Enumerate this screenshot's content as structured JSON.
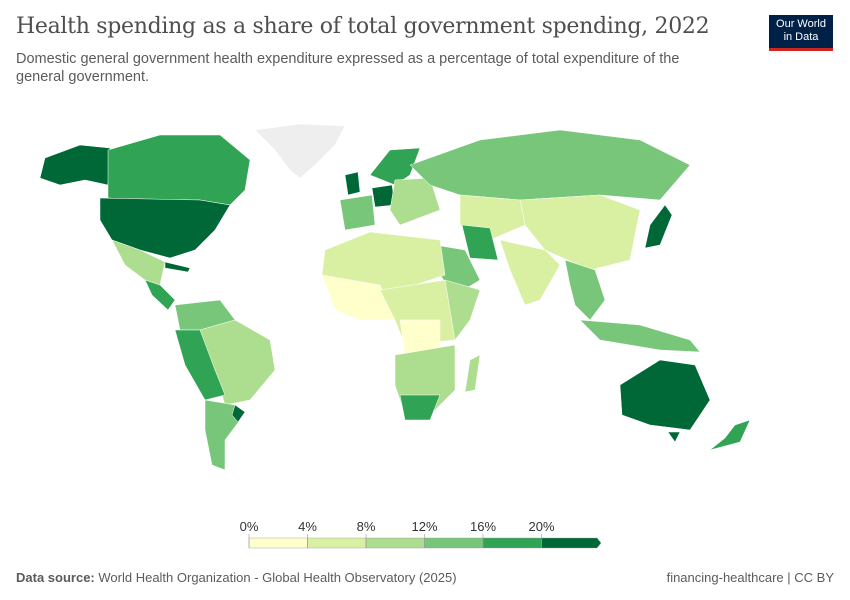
{
  "header": {
    "title": "Health spending as a share of total government spending, 2022",
    "subtitle": "Domestic general government health expenditure expressed as a percentage of total expenditure of the general government.",
    "logo_line1": "Our World",
    "logo_line2": "in Data"
  },
  "legend": {
    "bins": [
      {
        "label": "0%",
        "color": "#ffffcc"
      },
      {
        "label": "4%",
        "color": "#d9f0a3"
      },
      {
        "label": "8%",
        "color": "#addd8e"
      },
      {
        "label": "12%",
        "color": "#78c679"
      },
      {
        "label": "16%",
        "color": "#31a354"
      },
      {
        "label": "20%",
        "color": "#006837"
      }
    ]
  },
  "footer": {
    "source_label": "Data source:",
    "source": "World Health Organization - Global Health Observatory (2025)",
    "right": "financing-healthcare | CC BY"
  }
}
